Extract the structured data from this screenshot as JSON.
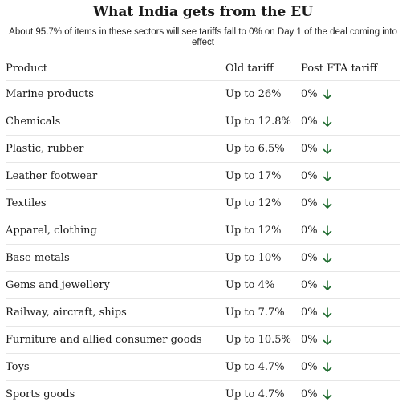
{
  "header": {
    "title": "What India gets from the EU",
    "subtitle": "About 95.7% of items in these sectors will see tariffs fall to 0% on Day 1 of the deal coming into effect"
  },
  "chart_data": {
    "type": "table",
    "columns": [
      "Product",
      "Old tariff",
      "Post FTA tariff"
    ],
    "rows": [
      [
        "Marine products",
        "Up to 26%",
        "0%"
      ],
      [
        "Chemicals",
        "Up to 12.8%",
        "0%"
      ],
      [
        "Plastic, rubber",
        "Up to 6.5%",
        "0%"
      ],
      [
        "Leather footwear",
        "Up to 17%",
        "0%"
      ],
      [
        "Textiles",
        "Up to 12%",
        "0%"
      ],
      [
        "Apparel, clothing",
        "Up to 12%",
        "0%"
      ],
      [
        "Base metals",
        "Up to 10%",
        "0%"
      ],
      [
        "Gems and jewellery",
        "Up to 4%",
        "0%"
      ],
      [
        "Railway, aircraft, ships",
        "Up to 7.7%",
        "0%"
      ],
      [
        "Furniture and allied consumer goods",
        "Up to 10.5%",
        "0%"
      ],
      [
        "Toys",
        "Up to 4.7%",
        "0%"
      ],
      [
        "Sports goods",
        "Up to 4.7%",
        "0%"
      ]
    ],
    "down_arrow_icon": "arrow-down-icon",
    "arrow_color": "#1e6b2e"
  }
}
